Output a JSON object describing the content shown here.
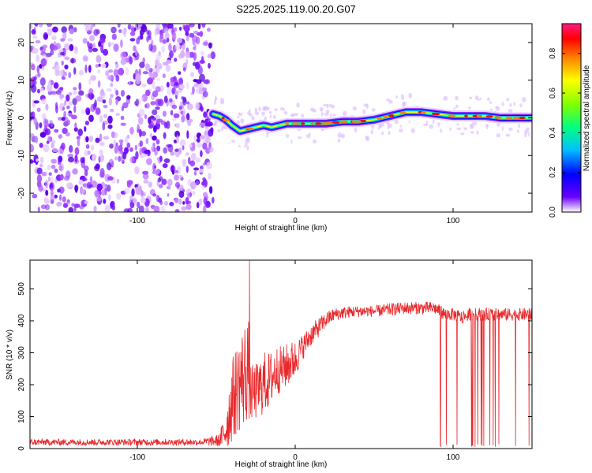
{
  "title": "S225.2025.119.00.20.G07",
  "chart_data": [
    {
      "type": "heatmap",
      "title": "S225.2025.119.00.20.G07",
      "xlabel": "Height of straight line (km)",
      "ylabel": "Frequency (Hz)",
      "xlim": [
        -168,
        150
      ],
      "ylim": [
        -25,
        25
      ],
      "xticks": [
        -100,
        0,
        100
      ],
      "yticks": [
        -20,
        -10,
        0,
        10,
        20
      ],
      "grid": false,
      "noise_region_x": [
        -168,
        -52
      ],
      "signal_ridge": {
        "x": [
          -52,
          -48,
          -44,
          -40,
          -35,
          -30,
          -25,
          -20,
          -15,
          -10,
          -5,
          0,
          5,
          10,
          20,
          30,
          40,
          50,
          55,
          60,
          70,
          80,
          90,
          100,
          110,
          120,
          130,
          140,
          150
        ],
        "frequency": [
          1.0,
          0.5,
          -0.5,
          -2.0,
          -3.5,
          -3.0,
          -2.5,
          -2.0,
          -2.5,
          -2.0,
          -1.5,
          -1.5,
          -1.5,
          -1.5,
          -1.5,
          -1.0,
          -1.0,
          -0.5,
          0.0,
          0.5,
          1.5,
          1.5,
          1.0,
          0.5,
          0.5,
          0.5,
          0.0,
          0.0,
          0.0
        ]
      },
      "colorbar": {
        "label": "Normalized spectral amplitude",
        "range": [
          0.0,
          0.95
        ],
        "ticks": [
          0.0,
          0.2,
          0.4,
          0.6,
          0.8
        ],
        "tick_labels": [
          "0.0",
          "0.2",
          "0.4",
          "0.6",
          "0.8"
        ],
        "colormap": [
          "#ffffff",
          "#6a00ff",
          "#0000ff",
          "#00c0ff",
          "#00ff80",
          "#80ff00",
          "#ffff00",
          "#ff8000",
          "#ff0000",
          "#ff1a80"
        ]
      }
    },
    {
      "type": "line",
      "xlabel": "Height of straight line (km)",
      "ylabel": "SNR (10 * v/v)",
      "xlim": [
        -168,
        150
      ],
      "ylim": [
        0,
        590
      ],
      "xticks": [
        -100,
        0,
        100
      ],
      "yticks": [
        0,
        100,
        200,
        300,
        400,
        500
      ],
      "grid": false,
      "series": [
        {
          "color": "#e8282b",
          "envelope": {
            "x": [
              -168,
              -60,
              -48,
              -44,
              -40,
              -36,
              -32,
              -30,
              -28,
              -24,
              -20,
              -16,
              -12,
              -8,
              -4,
              0,
              5,
              10,
              15,
              20,
              25,
              30,
              40,
              50,
              60,
              70,
              80,
              88,
              92,
              95,
              100,
              106,
              110,
              120,
              130,
              140,
              150
            ],
            "mean": [
              20,
              20,
              25,
              60,
              150,
              200,
              230,
              270,
              170,
              180,
              205,
              215,
              245,
              250,
              265,
              280,
              320,
              355,
              380,
              405,
              420,
              425,
              430,
              430,
              435,
              440,
              440,
              440,
              430,
              420,
              420,
              410,
              420,
              420,
              420,
              420,
              420
            ],
            "spread": [
              10,
              10,
              20,
              70,
              130,
              150,
              170,
              180,
              90,
              90,
              100,
              90,
              80,
              70,
              70,
              60,
              40,
              35,
              30,
              25,
              20,
              20,
              18,
              18,
              20,
              20,
              20,
              20,
              20,
              20,
              20,
              20,
              20,
              20,
              20,
              20,
              20
            ]
          },
          "dropouts": [
            {
              "x_start": 91,
              "x_end": 106,
              "min": 5
            },
            {
              "x_start": 110,
              "x_end": 150,
              "min": 5
            }
          ],
          "peak": {
            "x": -29,
            "y": 590
          }
        }
      ]
    }
  ]
}
